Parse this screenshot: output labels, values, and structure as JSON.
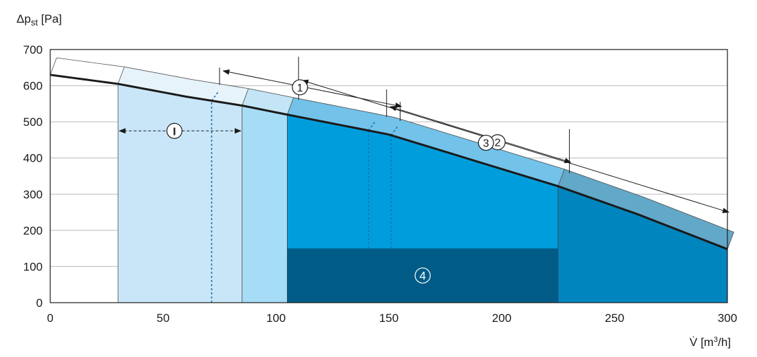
{
  "chart_data": {
    "type": "area",
    "ylabel": "Δp",
    "ylabel_subscript": "st",
    "ylabel_unit": "[Pa]",
    "xlabel": "V̇",
    "xlabel_unit_prefix": "[m",
    "xlabel_unit_superscript": "3",
    "xlabel_unit_suffix": "/h]",
    "xlim": [
      0,
      300
    ],
    "ylim": [
      0,
      700
    ],
    "x_ticks": [
      "0",
      "50",
      "100",
      "150",
      "200",
      "250",
      "300"
    ],
    "y_ticks": [
      "0",
      "100",
      "200",
      "300",
      "400",
      "500",
      "600",
      "700"
    ],
    "x_tick_values": [
      0,
      50,
      100,
      150,
      200,
      250,
      300
    ],
    "y_tick_values": [
      0,
      100,
      200,
      300,
      400,
      500,
      600,
      700
    ],
    "grid": true,
    "fan_curve": {
      "x": [
        0,
        30,
        60,
        85,
        105,
        150,
        225,
        260,
        300
      ],
      "y": [
        630,
        605,
        570,
        545,
        520,
        465,
        322,
        245,
        148
      ]
    },
    "regions": [
      {
        "label": "I",
        "x_start": 30,
        "x_end": 85,
        "dashed_x": 71.5,
        "color": "#c9e6f8"
      },
      {
        "label": "",
        "x_start": 85,
        "x_end": 105,
        "color": "#a6dcf5"
      },
      {
        "label": "1",
        "x_start": 105,
        "x_end": 225,
        "color": "#009ddc"
      },
      {
        "label": "2",
        "x_start": 225,
        "x_end": 300,
        "color": "#0085bf"
      },
      {
        "label": "4",
        "x_start": 105,
        "x_end": 225,
        "y_top": 150,
        "color": "#005c87"
      }
    ],
    "dashed_lines_x": [
      71.5,
      141,
      151
    ],
    "callouts": [
      {
        "label": "I",
        "text": "I"
      },
      {
        "label": "1",
        "text": "1"
      },
      {
        "label": "2",
        "text": "2"
      },
      {
        "label": "3",
        "text": "3"
      },
      {
        "label": "4",
        "text": "4"
      }
    ]
  }
}
